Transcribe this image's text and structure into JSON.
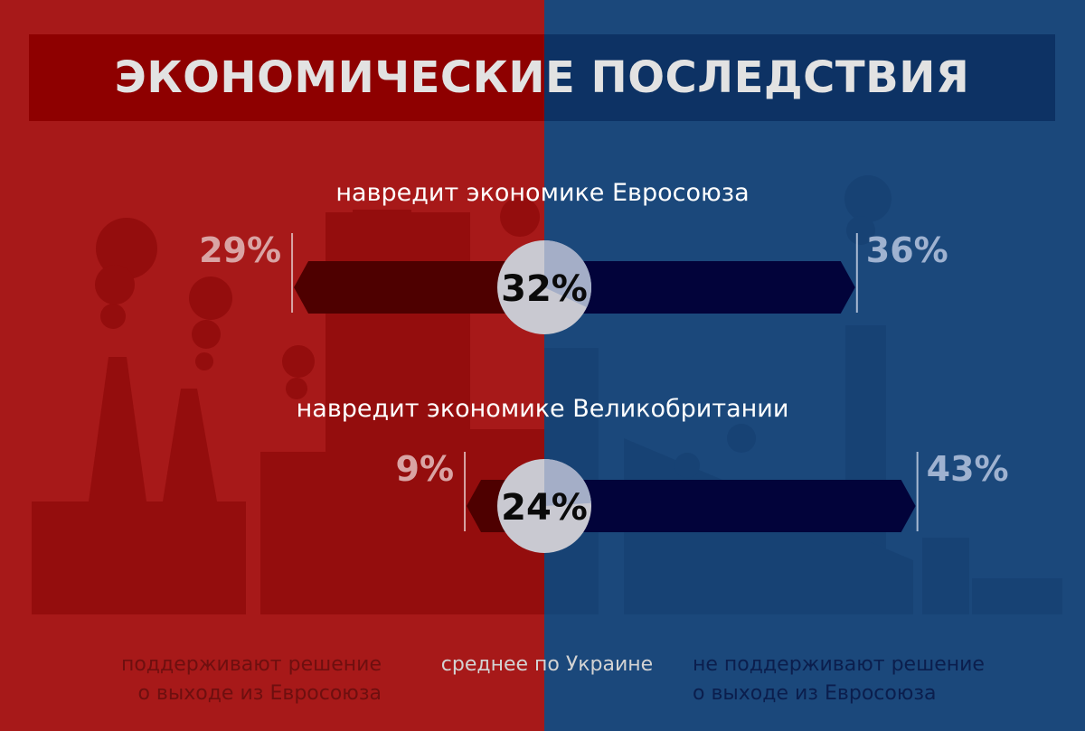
{
  "title": "ЭКОНОМИЧЕСКИЕ ПОСЛЕДСТВИЯ",
  "colors": {
    "left_bg": "#a71919",
    "right_bg": "#1b487b",
    "left_arrow": "#4e0000",
    "right_arrow": "#02033a",
    "average_circle": "#c9c9d1"
  },
  "legend": {
    "left": [
      "поддерживают решение",
      "о выходе из Евросоюза"
    ],
    "middle": "среднее по Украине",
    "right": [
      "не поддерживают решение",
      "о выходе из Евросоюза"
    ]
  },
  "chart_data": {
    "type": "bar",
    "title": "ЭКОНОМИЧЕСКИЕ ПОСЛЕДСТВИЯ",
    "unit": "%",
    "categories": [
      "навредит экономике Евросоюза",
      "навредит экономике Великобритании"
    ],
    "series": [
      {
        "name": "поддерживают решение о выходе из Евросоюза",
        "values": [
          29,
          9
        ]
      },
      {
        "name": "среднее по Украине",
        "values": [
          32,
          24
        ]
      },
      {
        "name": "не поддерживают решение о выходе из Евросоюза",
        "values": [
          36,
          43
        ]
      }
    ],
    "value_labels": {
      "left": [
        "29%",
        "9%"
      ],
      "average": [
        "32%",
        "24%"
      ],
      "right": [
        "36%",
        "43%"
      ]
    }
  }
}
